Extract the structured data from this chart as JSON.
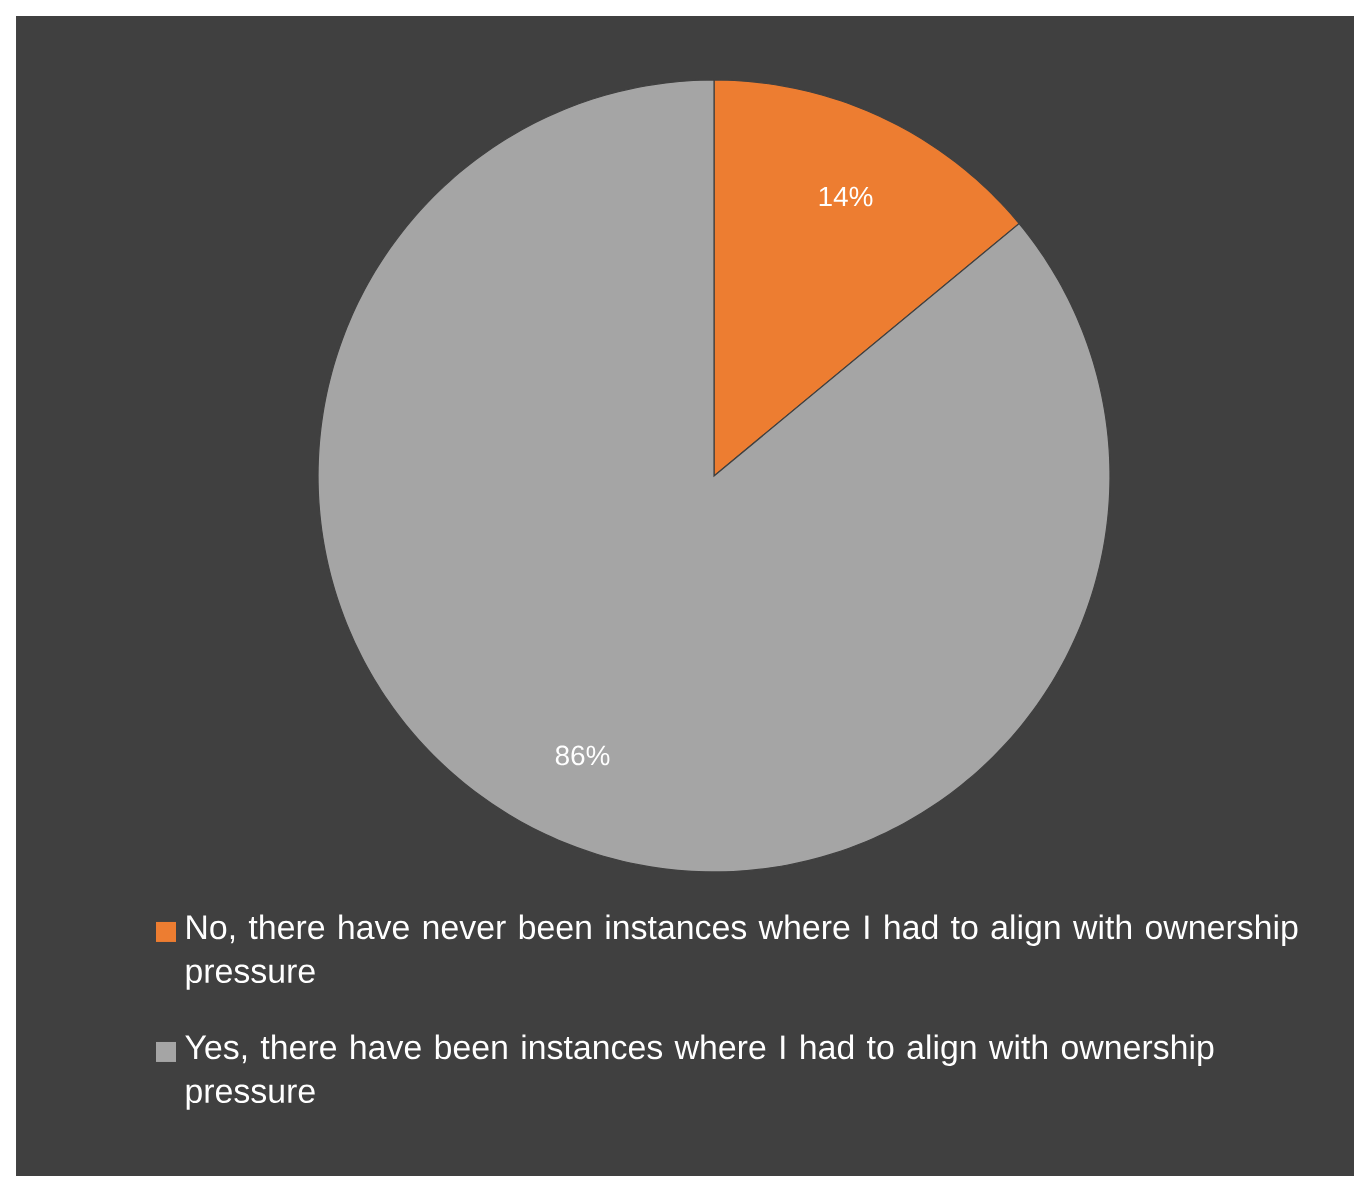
{
  "chart_data": {
    "type": "pie",
    "categories": [
      "No, there have never been instances where I had to align with ownership pressure",
      "Yes, there have been instances where I had to align with ownership pressure"
    ],
    "values": [
      14,
      86
    ],
    "value_labels": [
      "14%",
      "86%"
    ],
    "colors": [
      "#ed7d31",
      "#a5a5a5"
    ],
    "legend": "bottom"
  }
}
